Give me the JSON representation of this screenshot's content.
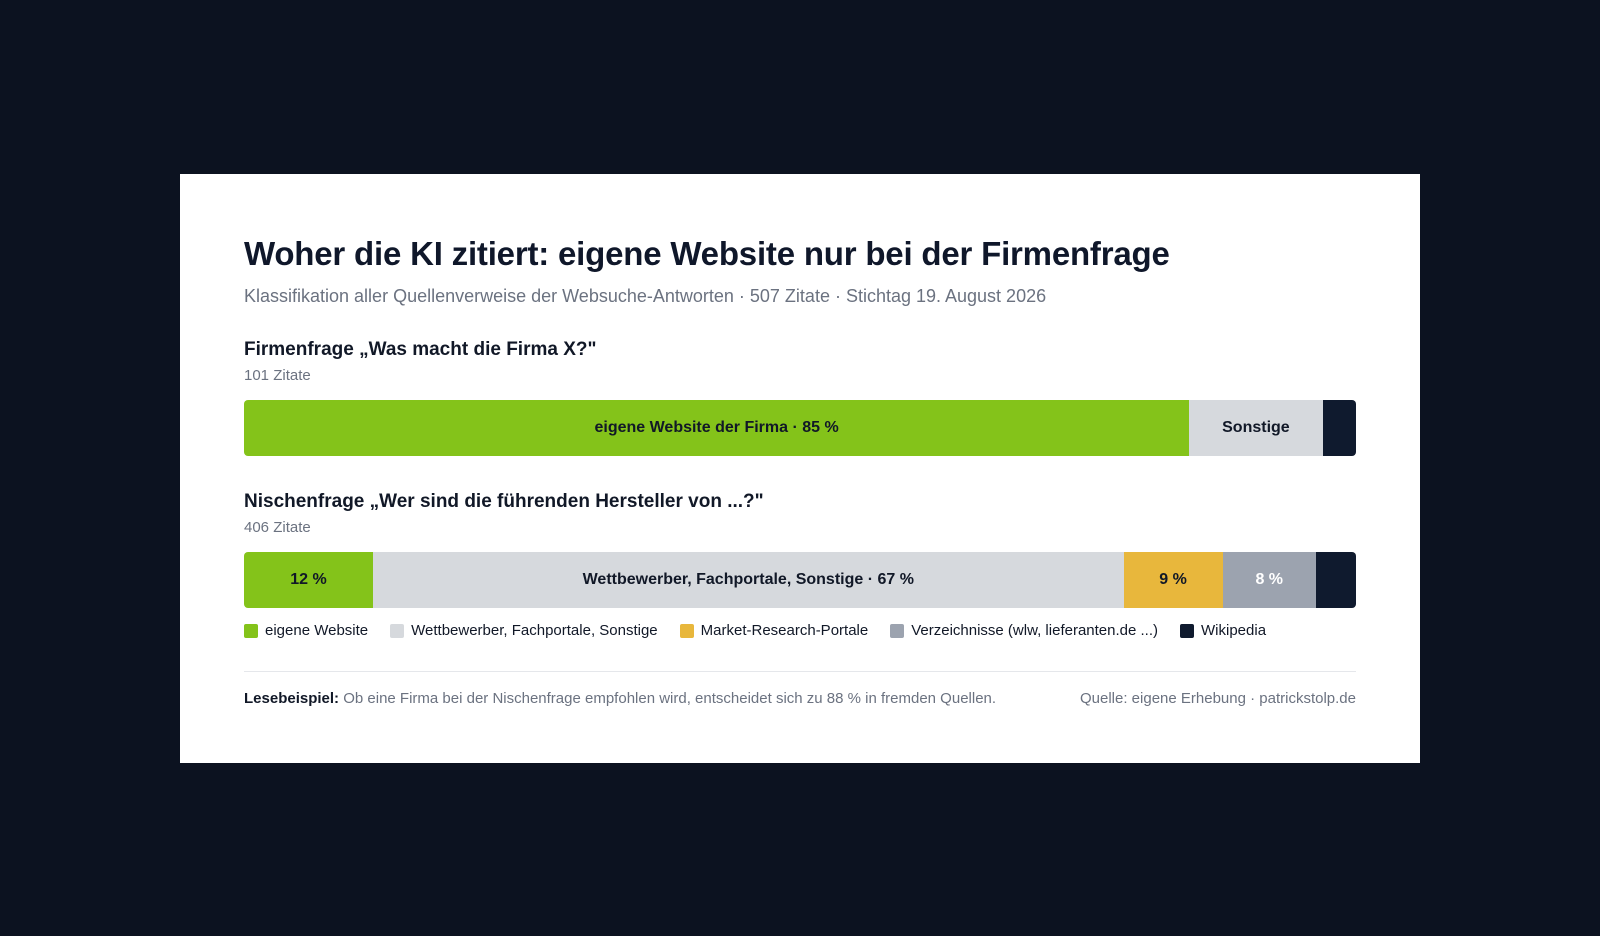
{
  "title": "Woher die KI zitiert: eigene Website nur bei der Firmenfrage",
  "subtitle": "Klassifikation aller Quellenverweise der Websuche-Antworten · 507 Zitate · Stichtag 19. August 2026",
  "colors": {
    "eigene_website": "#84c31a",
    "sonstige": "#d6d9dd",
    "market_research": "#e8b73c",
    "verzeichnisse": "#9ca3af",
    "wikipedia": "#0f1a2e"
  },
  "chart_data": {
    "type": "bar",
    "orientation": "horizontal-stacked-100",
    "categories_legend": [
      {
        "name": "eigene Website",
        "color_key": "eigene_website"
      },
      {
        "name": "Wettbewerber, Fachportale, Sonstige",
        "color_key": "sonstige"
      },
      {
        "name": "Market-Research-Portale",
        "color_key": "market_research"
      },
      {
        "name": "Verzeichnisse (wlw, lieferanten.de ...)",
        "color_key": "verzeichnisse"
      },
      {
        "name": "Wikipedia",
        "color_key": "wikipedia"
      }
    ],
    "rows": [
      {
        "title": "Firmenfrage „Was macht die Firma X?\"",
        "count": "101 Zitate",
        "segments": [
          {
            "value": 85,
            "color_key": "eigene_website",
            "label": "eigene Website der Firma · 85 %",
            "text_color": "#111827"
          },
          {
            "value": 12,
            "color_key": "sonstige",
            "label": "Sonstige",
            "text_color": "#111827"
          },
          {
            "value": 3,
            "color_key": "wikipedia",
            "label": "",
            "text_color": "#ffffff"
          }
        ]
      },
      {
        "title": "Nischenfrage „Wer sind die führenden Hersteller von ...?\"",
        "count": "406 Zitate",
        "segments": [
          {
            "value": 11.6,
            "color_key": "eigene_website",
            "label": "12 %",
            "text_color": "#111827"
          },
          {
            "value": 67.5,
            "color_key": "sonstige",
            "label": "Wettbewerber, Fachportale, Sonstige · 67 %",
            "text_color": "#111827"
          },
          {
            "value": 8.9,
            "color_key": "market_research",
            "label": "9 %",
            "text_color": "#111827"
          },
          {
            "value": 8.4,
            "color_key": "verzeichnisse",
            "label": "8 %",
            "text_color": "#ffffff"
          },
          {
            "value": 3.6,
            "color_key": "wikipedia",
            "label": "",
            "text_color": "#ffffff"
          }
        ]
      }
    ]
  },
  "footer": {
    "reading_label": "Lesebeispiel:",
    "reading_text": "Ob eine Firma bei der Nischenfrage empfohlen wird, entscheidet sich zu 88 % in fremden Quellen.",
    "source": "Quelle: eigene Erhebung · patrickstolp.de"
  }
}
